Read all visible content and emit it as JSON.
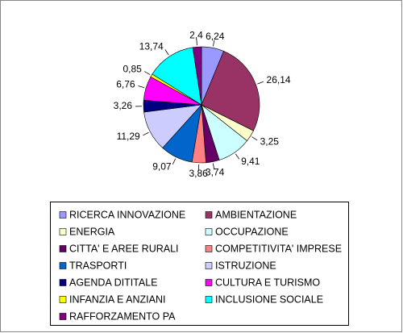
{
  "chart_data": {
    "type": "pie",
    "categories": [
      "RICERCA INNOVAZIONE",
      "AMBIENTAZIONE",
      "ENERGIA",
      "OCCUPAZIONE",
      "CITTA' E AREE RURALI",
      "COMPETITIVITA' IMPRESE",
      "TRASPORTI",
      "ISTRUZIONE",
      "AGENDA DITITALE",
      "CULTURA E TURISMO",
      "INFANZIA E ANZIANI",
      "INCLUSIONE SOCIALE",
      "RAFFORZAMENTO PA"
    ],
    "values": [
      6.24,
      26.14,
      3.25,
      9.41,
      3.74,
      3.86,
      9.07,
      11.29,
      3.26,
      6.76,
      0.85,
      13.74,
      2.4
    ],
    "value_labels": [
      "6,24",
      "26,14",
      "3,25",
      "9,41",
      "3,74",
      "3,86",
      "9,07",
      "11,29",
      "3,26",
      "6,76",
      "0,85",
      "13,74",
      "2,4"
    ],
    "colors": [
      "#9999ff",
      "#993366",
      "#ffffcc",
      "#ccffff",
      "#660066",
      "#ff8080",
      "#0066cc",
      "#ccccff",
      "#000080",
      "#ff00ff",
      "#ffff00",
      "#00ffff",
      "#800080"
    ]
  }
}
